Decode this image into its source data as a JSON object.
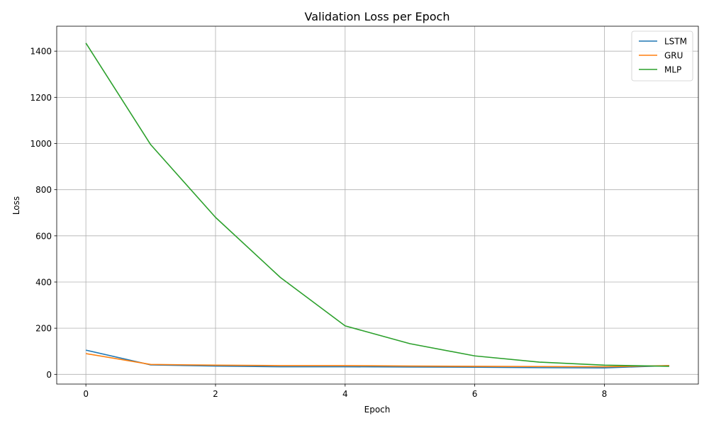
{
  "chart_data": {
    "type": "line",
    "title": "Validation Loss per Epoch",
    "xlabel": "Epoch",
    "ylabel": "Loss",
    "xlim": [
      -0.45,
      9.45
    ],
    "ylim": [
      -42,
      1508
    ],
    "xticks": [
      0,
      2,
      4,
      6,
      8
    ],
    "yticks": [
      0,
      200,
      400,
      600,
      800,
      1000,
      1200,
      1400
    ],
    "grid": true,
    "legend_position": "top-right",
    "x": [
      0,
      1,
      2,
      3,
      4,
      5,
      6,
      7,
      8,
      9
    ],
    "series": [
      {
        "name": "LSTM",
        "color": "#1f77b4",
        "values": [
          105,
          41,
          36,
          33,
          33,
          32,
          31,
          29,
          28,
          38
        ]
      },
      {
        "name": "GRU",
        "color": "#ff7f0e",
        "values": [
          90,
          43,
          40,
          38,
          38,
          36,
          35,
          34,
          33,
          38
        ]
      },
      {
        "name": "MLP",
        "color": "#2ca02c",
        "values": [
          1435,
          995,
          680,
          420,
          210,
          133,
          80,
          53,
          40,
          35
        ]
      }
    ]
  }
}
